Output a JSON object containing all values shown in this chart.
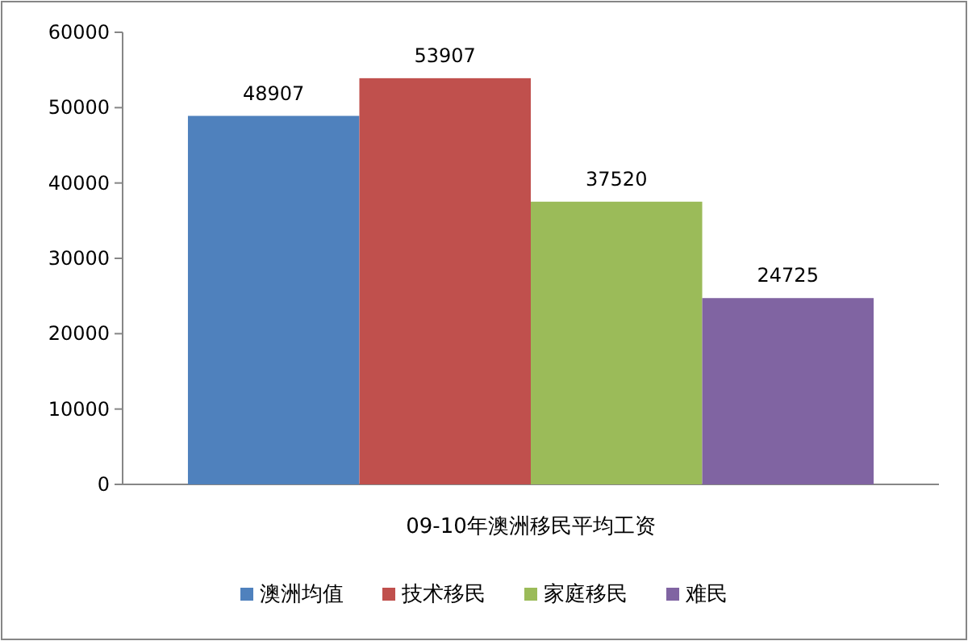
{
  "chart_data": {
    "type": "bar",
    "categories": [
      "09-10年澳洲移民平均工资"
    ],
    "series": [
      {
        "name": "澳洲均值",
        "color": "#4f81bd",
        "values": [
          48907
        ]
      },
      {
        "name": "技术移民",
        "color": "#c0504d",
        "values": [
          53907
        ]
      },
      {
        "name": "家庭移民",
        "color": "#9bbb59",
        "values": [
          37520
        ]
      },
      {
        "name": "难民",
        "color": "#8064a2",
        "values": [
          24725
        ]
      }
    ],
    "ylim": [
      0,
      60000
    ],
    "yticks": [
      0,
      10000,
      20000,
      30000,
      40000,
      50000,
      60000
    ],
    "data_labels": true,
    "legend": "bottom"
  }
}
